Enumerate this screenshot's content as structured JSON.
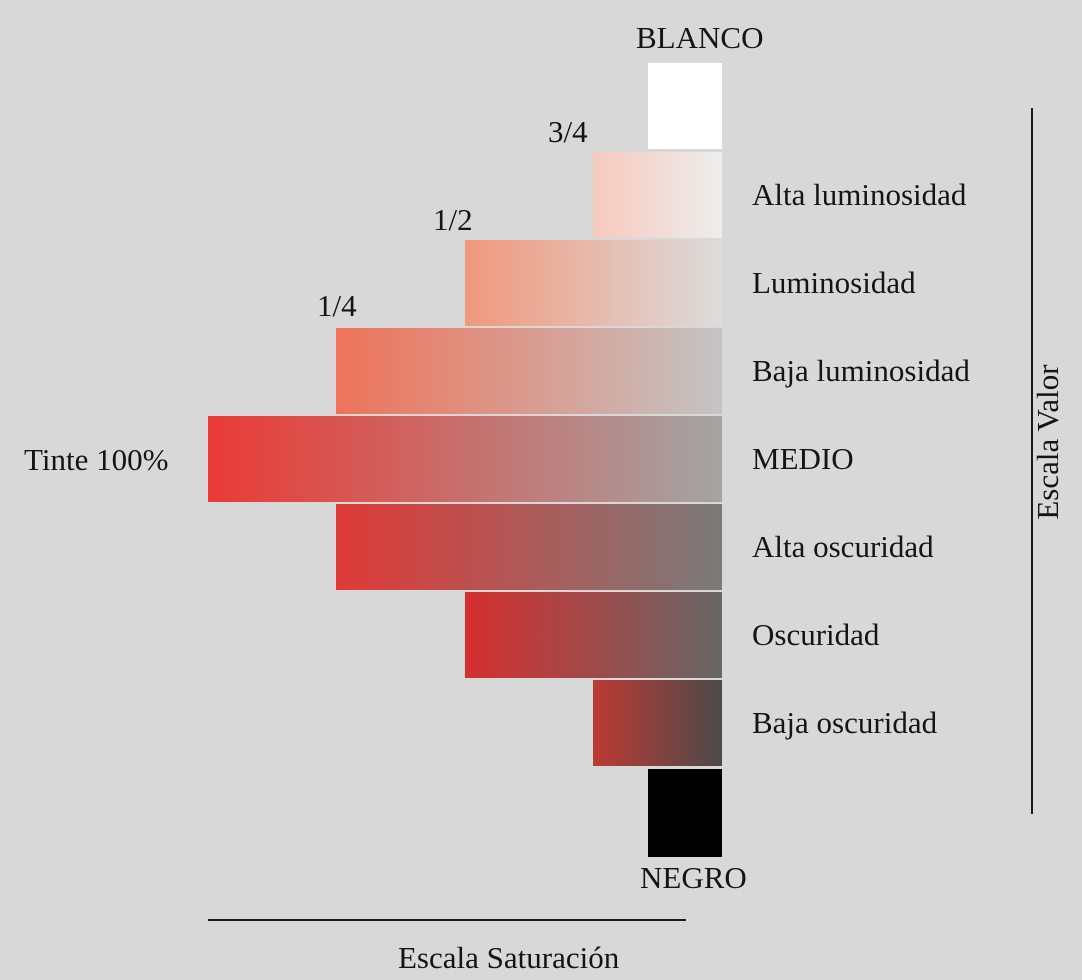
{
  "labels": {
    "blanco": "BLANCO",
    "negro": "NEGRO",
    "tint_full": "Tinte 100%",
    "sat_three_quarter": "3/4",
    "sat_half": "1/2",
    "sat_quarter": "1/4",
    "saturation_scale": "Escala Saturación",
    "value_scale": "Escala Valor"
  },
  "value_levels": [
    {
      "label": "Alta luminosidad",
      "saturation_fraction": 0.25,
      "left_color": "#f7c9bd",
      "right_color": "#ededed"
    },
    {
      "label": "Luminosidad",
      "saturation_fraction": 0.5,
      "left_color": "#f1987c",
      "right_color": "#dcdcdc"
    },
    {
      "label": "Baja luminosidad",
      "saturation_fraction": 0.75,
      "left_color": "#ee735a",
      "right_color": "#c4c4c4"
    },
    {
      "label": "MEDIO",
      "saturation_fraction": 1.0,
      "left_color": "#ea3a35",
      "right_color": "#a4a4a4"
    },
    {
      "label": "Alta oscuridad",
      "saturation_fraction": 0.75,
      "left_color": "#e03a37",
      "right_color": "#7a7a7a"
    },
    {
      "label": "Oscuridad",
      "saturation_fraction": 0.5,
      "left_color": "#d62f2f",
      "right_color": "#666666"
    },
    {
      "label": "Baja oscuridad",
      "saturation_fraction": 0.25,
      "left_color": "#bd3a33",
      "right_color": "#4b4a4a"
    }
  ],
  "colors": {
    "background": "#d8d8d8",
    "white": "#ffffff",
    "black": "#000000",
    "line": "#1a1a1a"
  }
}
